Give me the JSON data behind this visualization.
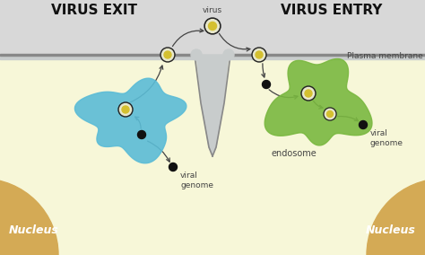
{
  "title_left": "VIRUS EXIT",
  "title_right": "VIRUS ENTRY",
  "label_virus": "virus",
  "label_plasma": "Plasma membrane",
  "label_endosome": "endosome",
  "label_viral_genome_left": "viral\ngenome",
  "label_viral_genome_right": "viral\ngenome",
  "label_nucleus": "Nucleus",
  "bg_top": "#d8d8d8",
  "bg_bottom": "#f7f7d8",
  "nucleus_color": "#d4aa55",
  "membrane_fill": "#c8cccc",
  "membrane_edge": "#888888",
  "blue_vesicle": "#5bbcd6",
  "green_endosome": "#7ab840",
  "vesicle_ring": "#e8e8cc",
  "vesicle_core": "#d4c030",
  "vesicle_outer": "#222222",
  "arrow_color": "#444444",
  "dot_color": "#111111",
  "text_color": "#444444",
  "title_color": "#111111",
  "fig_w": 4.74,
  "fig_h": 2.84,
  "dpi": 100
}
